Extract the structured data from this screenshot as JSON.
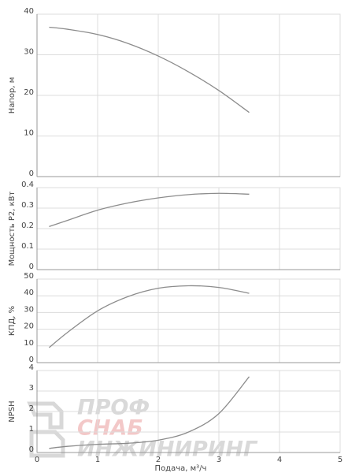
{
  "chart_data": [
    {
      "type": "line",
      "y_label": "Напор, м",
      "x": [
        0.2,
        0.5,
        1,
        1.5,
        2,
        2.5,
        3,
        3.5
      ],
      "values": [
        36.8,
        36.3,
        35,
        32.8,
        29.7,
        25.8,
        21.2,
        15.8
      ],
      "color": "#8c8c8c",
      "xlim": [
        0,
        5
      ],
      "xticks": [
        0,
        1,
        2,
        3,
        4,
        5
      ],
      "ylim": [
        0,
        40
      ],
      "yticks": [
        0,
        10,
        20,
        30,
        40
      ],
      "grid": true
    },
    {
      "type": "line",
      "y_label": "Мощность P2, кВт",
      "x": [
        0.2,
        0.5,
        1,
        1.5,
        2,
        2.5,
        3,
        3.5
      ],
      "values": [
        0.21,
        0.24,
        0.29,
        0.325,
        0.35,
        0.366,
        0.372,
        0.368
      ],
      "color": "#8c8c8c",
      "xlim": [
        0,
        5
      ],
      "xticks": [
        0,
        1,
        2,
        3,
        4,
        5
      ],
      "ylim": [
        0,
        0.4
      ],
      "yticks": [
        0,
        0.1,
        0.2,
        0.3,
        0.4
      ],
      "grid": true
    },
    {
      "type": "line",
      "y_label": "КПД, %",
      "x": [
        0.2,
        0.5,
        1,
        1.5,
        2,
        2.5,
        3,
        3.5
      ],
      "values": [
        9,
        18,
        31,
        39.5,
        44.5,
        46,
        45,
        41.5
      ],
      "color": "#8c8c8c",
      "xlim": [
        0,
        5
      ],
      "xticks": [
        0,
        1,
        2,
        3,
        4,
        5
      ],
      "ylim": [
        0,
        50
      ],
      "yticks": [
        0,
        10,
        20,
        30,
        40,
        50
      ],
      "grid": true
    },
    {
      "type": "line",
      "y_label": "NPSH",
      "x_label": "Подача, м³/ч",
      "x": [
        0.2,
        0.5,
        1,
        1.5,
        2,
        2.5,
        3,
        3.5
      ],
      "values": [
        0.2,
        0.3,
        0.4,
        0.45,
        0.6,
        1.0,
        1.9,
        3.7
      ],
      "color": "#8c8c8c",
      "xlim": [
        0,
        5
      ],
      "xticks": [
        0,
        1,
        2,
        3,
        4,
        5
      ],
      "ylim": [
        0,
        4
      ],
      "yticks": [
        0,
        1,
        2,
        3,
        4
      ],
      "grid": true
    }
  ],
  "watermark": {
    "line1": "ПРОФ",
    "line2": "СНАБ",
    "line3": "ИНЖИНИРИНГ"
  }
}
